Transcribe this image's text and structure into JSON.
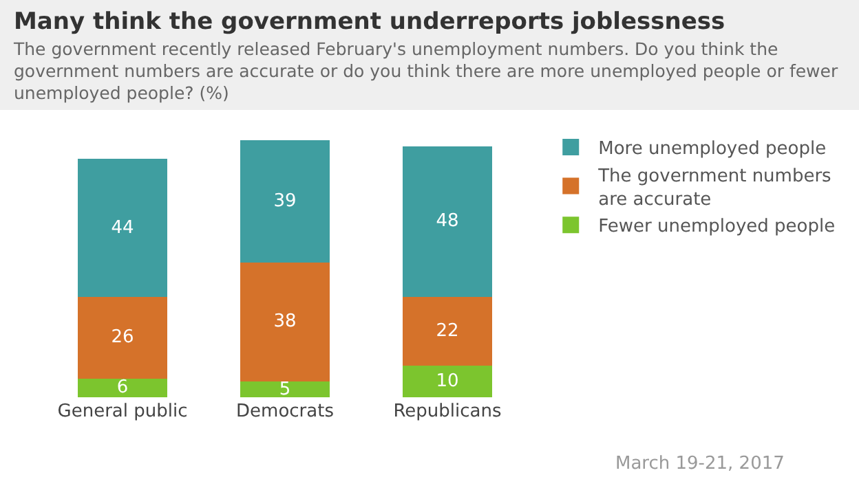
{
  "chart_data": {
    "type": "bar",
    "title": "Many think the government underreports joblessness",
    "subtitle": "The government recently released February's unemployment numbers. Do you think the government numbers are accurate or do you think there are more unemployed people or fewer unemployed people? (%)",
    "categories": [
      "General public",
      "Democrats",
      "Republicans"
    ],
    "series": [
      {
        "name": "Fewer unemployed people",
        "color": "#7cc52e",
        "values": [
          6,
          5,
          10
        ]
      },
      {
        "name": "The government numbers are accurate",
        "color": "#d5722a",
        "values": [
          26,
          38,
          22
        ]
      },
      {
        "name": "More unemployed people",
        "color": "#3f9ea0",
        "values": [
          44,
          39,
          48
        ]
      }
    ],
    "stacked": true,
    "data_labels": true,
    "legend": "right",
    "tick_labels": "x",
    "annotations": [
      "March 19-21, 2017"
    ]
  }
}
